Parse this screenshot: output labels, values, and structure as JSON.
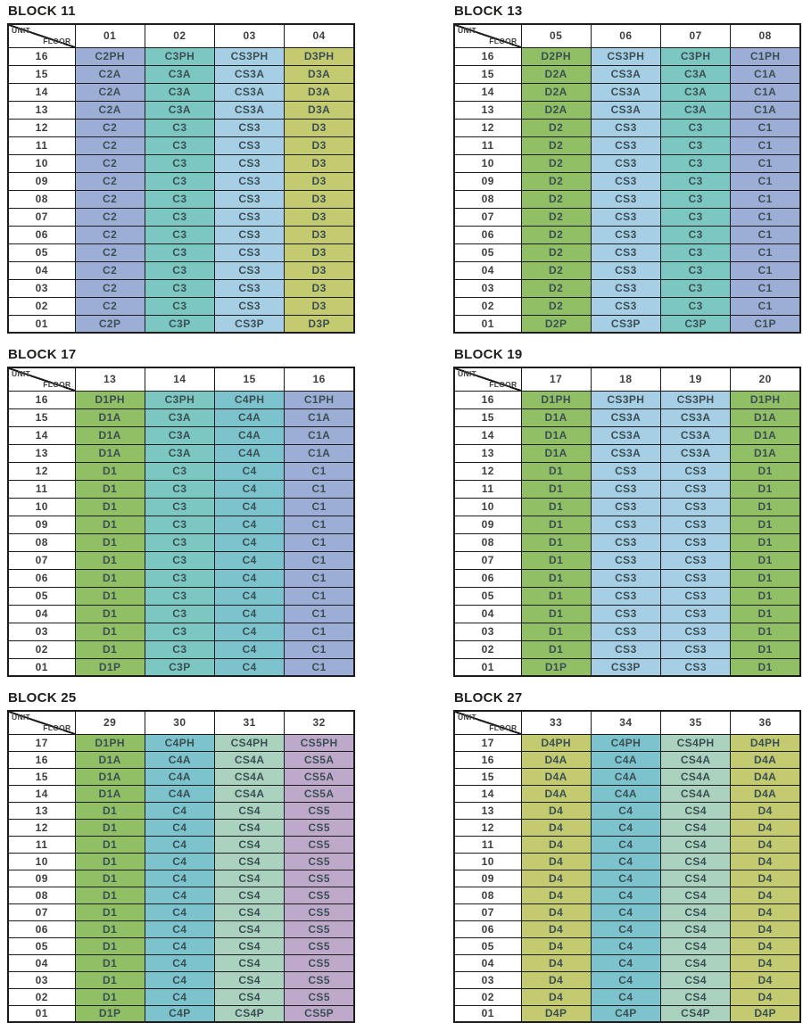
{
  "colors": {
    "periwinkle": "#9caed5",
    "teal": "#7dc7c2",
    "lightblue": "#a6cfe5",
    "olive": "#c3ca70",
    "green": "#90bf66",
    "teal2": "#7cc3cd",
    "seafoam": "#abd2bf",
    "mauve": "#bfa9cb"
  },
  "blocks": [
    {
      "title": "BLOCK 11",
      "header": {
        "unit_label": "UNIT",
        "floor_label": "FLOOR"
      },
      "units": [
        "01",
        "02",
        "03",
        "04"
      ],
      "column_colors": [
        "periwinkle",
        "teal",
        "lightblue",
        "olive"
      ],
      "rows": [
        [
          "16",
          "C2PH",
          "C3PH",
          "CS3PH",
          "D3PH"
        ],
        [
          "15",
          "C2A",
          "C3A",
          "CS3A",
          "D3A"
        ],
        [
          "14",
          "C2A",
          "C3A",
          "CS3A",
          "D3A"
        ],
        [
          "13",
          "C2A",
          "C3A",
          "CS3A",
          "D3A"
        ],
        [
          "12",
          "C2",
          "C3",
          "CS3",
          "D3"
        ],
        [
          "11",
          "C2",
          "C3",
          "CS3",
          "D3"
        ],
        [
          "10",
          "C2",
          "C3",
          "CS3",
          "D3"
        ],
        [
          "09",
          "C2",
          "C3",
          "CS3",
          "D3"
        ],
        [
          "08",
          "C2",
          "C3",
          "CS3",
          "D3"
        ],
        [
          "07",
          "C2",
          "C3",
          "CS3",
          "D3"
        ],
        [
          "06",
          "C2",
          "C3",
          "CS3",
          "D3"
        ],
        [
          "05",
          "C2",
          "C3",
          "CS3",
          "D3"
        ],
        [
          "04",
          "C2",
          "C3",
          "CS3",
          "D3"
        ],
        [
          "03",
          "C2",
          "C3",
          "CS3",
          "D3"
        ],
        [
          "02",
          "C2",
          "C3",
          "CS3",
          "D3"
        ],
        [
          "01",
          "C2P",
          "C3P",
          "CS3P",
          "D3P"
        ]
      ]
    },
    {
      "title": "BLOCK 13",
      "header": {
        "unit_label": "UNIT",
        "floor_label": "FLOOR"
      },
      "units": [
        "05",
        "06",
        "07",
        "08"
      ],
      "column_colors": [
        "green",
        "lightblue",
        "teal",
        "periwinkle"
      ],
      "rows": [
        [
          "16",
          "D2PH",
          "CS3PH",
          "C3PH",
          "C1PH"
        ],
        [
          "15",
          "D2A",
          "CS3A",
          "C3A",
          "C1A"
        ],
        [
          "14",
          "D2A",
          "CS3A",
          "C3A",
          "C1A"
        ],
        [
          "13",
          "D2A",
          "CS3A",
          "C3A",
          "C1A"
        ],
        [
          "12",
          "D2",
          "CS3",
          "C3",
          "C1"
        ],
        [
          "11",
          "D2",
          "CS3",
          "C3",
          "C1"
        ],
        [
          "10",
          "D2",
          "CS3",
          "C3",
          "C1"
        ],
        [
          "09",
          "D2",
          "CS3",
          "C3",
          "C1"
        ],
        [
          "08",
          "D2",
          "CS3",
          "C3",
          "C1"
        ],
        [
          "07",
          "D2",
          "CS3",
          "C3",
          "C1"
        ],
        [
          "06",
          "D2",
          "CS3",
          "C3",
          "C1"
        ],
        [
          "05",
          "D2",
          "CS3",
          "C3",
          "C1"
        ],
        [
          "04",
          "D2",
          "CS3",
          "C3",
          "C1"
        ],
        [
          "03",
          "D2",
          "CS3",
          "C3",
          "C1"
        ],
        [
          "02",
          "D2",
          "CS3",
          "C3",
          "C1"
        ],
        [
          "01",
          "D2P",
          "CS3P",
          "C3P",
          "C1P"
        ]
      ]
    },
    {
      "title": "BLOCK 17",
      "header": {
        "unit_label": "UNIT",
        "floor_label": "FLOOR"
      },
      "units": [
        "13",
        "14",
        "15",
        "16"
      ],
      "column_colors": [
        "green",
        "teal",
        "teal2",
        "periwinkle"
      ],
      "rows": [
        [
          "16",
          "D1PH",
          "C3PH",
          "C4PH",
          "C1PH"
        ],
        [
          "15",
          "D1A",
          "C3A",
          "C4A",
          "C1A"
        ],
        [
          "14",
          "D1A",
          "C3A",
          "C4A",
          "C1A"
        ],
        [
          "13",
          "D1A",
          "C3A",
          "C4A",
          "C1A"
        ],
        [
          "12",
          "D1",
          "C3",
          "C4",
          "C1"
        ],
        [
          "11",
          "D1",
          "C3",
          "C4",
          "C1"
        ],
        [
          "10",
          "D1",
          "C3",
          "C4",
          "C1"
        ],
        [
          "09",
          "D1",
          "C3",
          "C4",
          "C1"
        ],
        [
          "08",
          "D1",
          "C3",
          "C4",
          "C1"
        ],
        [
          "07",
          "D1",
          "C3",
          "C4",
          "C1"
        ],
        [
          "06",
          "D1",
          "C3",
          "C4",
          "C1"
        ],
        [
          "05",
          "D1",
          "C3",
          "C4",
          "C1"
        ],
        [
          "04",
          "D1",
          "C3",
          "C4",
          "C1"
        ],
        [
          "03",
          "D1",
          "C3",
          "C4",
          "C1"
        ],
        [
          "02",
          "D1",
          "C3",
          "C4",
          "C1"
        ],
        [
          "01",
          "D1P",
          "C3P",
          "C4",
          "C1"
        ]
      ]
    },
    {
      "title": "BLOCK 19",
      "header": {
        "unit_label": "UNIT",
        "floor_label": "FLOOR"
      },
      "units": [
        "17",
        "18",
        "19",
        "20"
      ],
      "column_colors": [
        "green",
        "lightblue",
        "lightblue",
        "green"
      ],
      "rows": [
        [
          "16",
          "D1PH",
          "CS3PH",
          "CS3PH",
          "D1PH"
        ],
        [
          "15",
          "D1A",
          "CS3A",
          "CS3A",
          "D1A"
        ],
        [
          "14",
          "D1A",
          "CS3A",
          "CS3A",
          "D1A"
        ],
        [
          "13",
          "D1A",
          "CS3A",
          "CS3A",
          "D1A"
        ],
        [
          "12",
          "D1",
          "CS3",
          "CS3",
          "D1"
        ],
        [
          "11",
          "D1",
          "CS3",
          "CS3",
          "D1"
        ],
        [
          "10",
          "D1",
          "CS3",
          "CS3",
          "D1"
        ],
        [
          "09",
          "D1",
          "CS3",
          "CS3",
          "D1"
        ],
        [
          "08",
          "D1",
          "CS3",
          "CS3",
          "D1"
        ],
        [
          "07",
          "D1",
          "CS3",
          "CS3",
          "D1"
        ],
        [
          "06",
          "D1",
          "CS3",
          "CS3",
          "D1"
        ],
        [
          "05",
          "D1",
          "CS3",
          "CS3",
          "D1"
        ],
        [
          "04",
          "D1",
          "CS3",
          "CS3",
          "D1"
        ],
        [
          "03",
          "D1",
          "CS3",
          "CS3",
          "D1"
        ],
        [
          "02",
          "D1",
          "CS3",
          "CS3",
          "D1"
        ],
        [
          "01",
          "D1P",
          "CS3P",
          "CS3",
          "D1"
        ]
      ]
    },
    {
      "title": "BLOCK 25",
      "header": {
        "unit_label": "UNIT",
        "floor_label": "FLOOR"
      },
      "units": [
        "29",
        "30",
        "31",
        "32"
      ],
      "column_colors": [
        "green",
        "teal2",
        "seafoam",
        "mauve"
      ],
      "rows": [
        [
          "17",
          "D1PH",
          "C4PH",
          "CS4PH",
          "CS5PH"
        ],
        [
          "16",
          "D1A",
          "C4A",
          "CS4A",
          "CS5A"
        ],
        [
          "15",
          "D1A",
          "C4A",
          "CS4A",
          "CS5A"
        ],
        [
          "14",
          "D1A",
          "C4A",
          "CS4A",
          "CS5A"
        ],
        [
          "13",
          "D1",
          "C4",
          "CS4",
          "CS5"
        ],
        [
          "12",
          "D1",
          "C4",
          "CS4",
          "CS5"
        ],
        [
          "11",
          "D1",
          "C4",
          "CS4",
          "CS5"
        ],
        [
          "10",
          "D1",
          "C4",
          "CS4",
          "CS5"
        ],
        [
          "09",
          "D1",
          "C4",
          "CS4",
          "CS5"
        ],
        [
          "08",
          "D1",
          "C4",
          "CS4",
          "CS5"
        ],
        [
          "07",
          "D1",
          "C4",
          "CS4",
          "CS5"
        ],
        [
          "06",
          "D1",
          "C4",
          "CS4",
          "CS5"
        ],
        [
          "05",
          "D1",
          "C4",
          "CS4",
          "CS5"
        ],
        [
          "04",
          "D1",
          "C4",
          "CS4",
          "CS5"
        ],
        [
          "03",
          "D1",
          "C4",
          "CS4",
          "CS5"
        ],
        [
          "02",
          "D1",
          "C4",
          "CS4",
          "CS5"
        ],
        [
          "01",
          "D1P",
          "C4P",
          "CS4P",
          "CS5P"
        ]
      ]
    },
    {
      "title": "BLOCK 27",
      "header": {
        "unit_label": "UNIT",
        "floor_label": "FLOOR"
      },
      "units": [
        "33",
        "34",
        "35",
        "36"
      ],
      "column_colors": [
        "olive",
        "teal2",
        "seafoam",
        "olive"
      ],
      "rows": [
        [
          "17",
          "D4PH",
          "C4PH",
          "CS4PH",
          "D4PH"
        ],
        [
          "16",
          "D4A",
          "C4A",
          "CS4A",
          "D4A"
        ],
        [
          "15",
          "D4A",
          "C4A",
          "CS4A",
          "D4A"
        ],
        [
          "14",
          "D4A",
          "C4A",
          "CS4A",
          "D4A"
        ],
        [
          "13",
          "D4",
          "C4",
          "CS4",
          "D4"
        ],
        [
          "12",
          "D4",
          "C4",
          "CS4",
          "D4"
        ],
        [
          "11",
          "D4",
          "C4",
          "CS4",
          "D4"
        ],
        [
          "10",
          "D4",
          "C4",
          "CS4",
          "D4"
        ],
        [
          "09",
          "D4",
          "C4",
          "CS4",
          "D4"
        ],
        [
          "08",
          "D4",
          "C4",
          "CS4",
          "D4"
        ],
        [
          "07",
          "D4",
          "C4",
          "CS4",
          "D4"
        ],
        [
          "06",
          "D4",
          "C4",
          "CS4",
          "D4"
        ],
        [
          "05",
          "D4",
          "C4",
          "CS4",
          "D4"
        ],
        [
          "04",
          "D4",
          "C4",
          "CS4",
          "D4"
        ],
        [
          "03",
          "D4",
          "C4",
          "CS4",
          "D4"
        ],
        [
          "02",
          "D4",
          "C4",
          "CS4",
          "D4"
        ],
        [
          "01",
          "D4P",
          "C4P",
          "CS4P",
          "D4P"
        ]
      ]
    }
  ]
}
